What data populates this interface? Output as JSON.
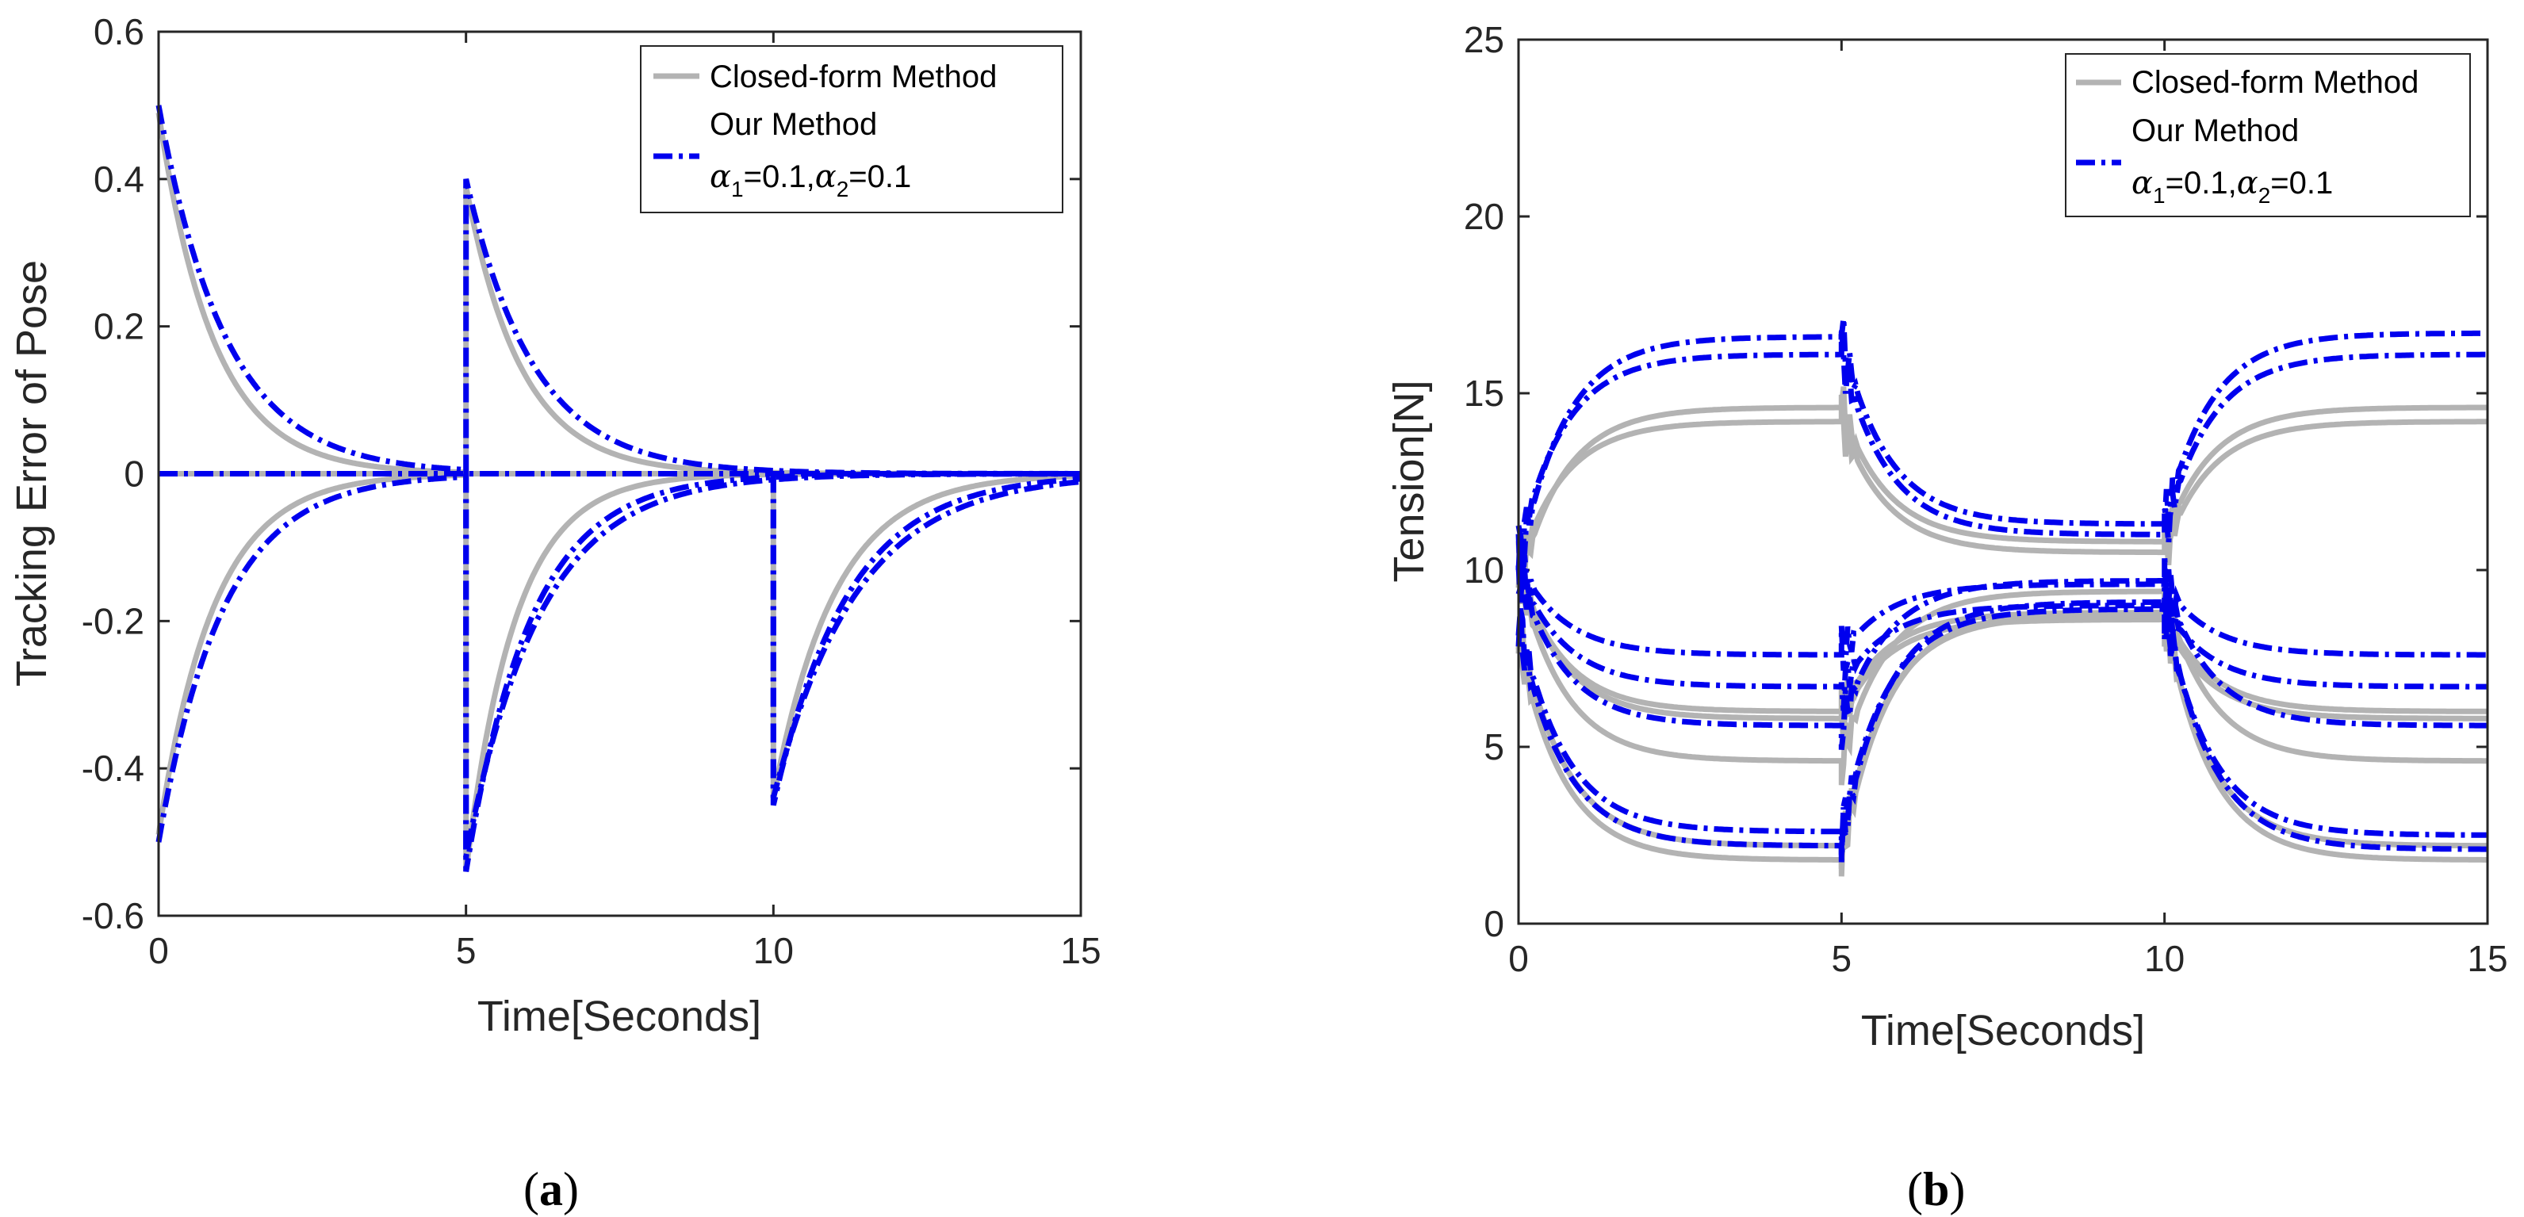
{
  "colors": {
    "closed": "#b3b3b3",
    "ours": "#0000ee",
    "axis": "#262626"
  },
  "chart_data": [
    {
      "type": "line",
      "id": "a",
      "caption_letter": "a",
      "xlabel": "Time[Seconds]",
      "ylabel": "Tracking Error of Pose",
      "xlim": [
        0,
        15
      ],
      "ylim": [
        -0.6,
        0.6
      ],
      "xticks": [
        0,
        5,
        10,
        15
      ],
      "yticks": [
        -0.6,
        -0.4,
        -0.2,
        0,
        0.2,
        0.4,
        0.6
      ],
      "ytick_labels": [
        "-0.6",
        "-0.4",
        "-0.2",
        "0",
        "0.2",
        "0.4",
        "0.6"
      ],
      "legend": {
        "position": "top-right",
        "entries": [
          {
            "text": "Closed-form Method",
            "style": "solid-gray"
          },
          {
            "text": "Our Method",
            "style": "dashdot-blue"
          },
          {
            "alpha1_value": "0.1",
            "alpha2_value": "0.1"
          }
        ]
      },
      "series": [
        {
          "name": "Closed-form Method",
          "segments": [
            {
              "t0": 0,
              "t1": 5,
              "start": 0.49,
              "end": 0.0,
              "tau": 0.9
            },
            {
              "t0": 0,
              "t1": 5,
              "start": -0.49,
              "end": 0.0,
              "tau": 0.9
            },
            {
              "t0": 5,
              "t1": 15,
              "start": 0.39,
              "end": 0.0,
              "tau": 0.9
            },
            {
              "t0": 5,
              "t1": 15,
              "start": -0.54,
              "end": 0.0,
              "tau": 0.8
            },
            {
              "t0": 10,
              "t1": 15,
              "start": -0.44,
              "end": 0.0,
              "tau": 1.0
            },
            {
              "t0": 0,
              "t1": 15,
              "start": 0.0,
              "end": 0.0,
              "tau": 1.0
            }
          ]
        },
        {
          "name": "Our Method α1=0.1,α2=0.1",
          "segments": [
            {
              "t0": 0,
              "t1": 5,
              "start": 0.5,
              "end": 0.0,
              "tau": 1.1
            },
            {
              "t0": 0,
              "t1": 5,
              "start": -0.5,
              "end": 0.0,
              "tau": 1.05
            },
            {
              "t0": 5,
              "t1": 15,
              "start": 0.4,
              "end": 0.0,
              "tau": 1.1
            },
            {
              "t0": 5,
              "t1": 15,
              "start": -0.54,
              "end": 0.0,
              "tau": 1.05
            },
            {
              "t0": 5,
              "t1": 15,
              "start": -0.52,
              "end": 0.0,
              "tau": 1.2
            },
            {
              "t0": 10,
              "t1": 15,
              "start": -0.45,
              "end": 0.0,
              "tau": 1.2
            },
            {
              "t0": 10,
              "t1": 15,
              "start": -0.44,
              "end": 0.0,
              "tau": 1.35
            },
            {
              "t0": 0,
              "t1": 15,
              "start": 0.0,
              "end": 0.0,
              "tau": 1.0
            }
          ]
        }
      ]
    },
    {
      "type": "line",
      "id": "b",
      "caption_letter": "b",
      "xlabel": "Time[Seconds]",
      "ylabel": "Tension[N]",
      "xlim": [
        0,
        15
      ],
      "ylim": [
        0,
        25
      ],
      "xticks": [
        0,
        5,
        10,
        15
      ],
      "yticks": [
        0,
        5,
        10,
        15,
        20,
        25
      ],
      "ytick_labels": [
        "0",
        "5",
        "10",
        "15",
        "20",
        "25"
      ],
      "legend": {
        "position": "top-right",
        "entries": [
          {
            "text": "Closed-form Method",
            "style": "solid-gray"
          },
          {
            "text": "Our Method",
            "style": "dashdot-blue"
          },
          {
            "alpha1_value": "0.1",
            "alpha2_value": "0.1"
          }
        ]
      },
      "series": [
        {
          "name": "Closed-form Method",
          "cables": [
            [
              9.5,
              14.6,
              10.8,
              14.6
            ],
            [
              10.0,
              14.2,
              10.5,
              14.2
            ],
            [
              10.0,
              6.0,
              8.8,
              6.0
            ],
            [
              10.0,
              5.8,
              8.6,
              5.8
            ],
            [
              10.0,
              4.6,
              9.4,
              4.6
            ],
            [
              8.5,
              2.2,
              8.7,
              2.2
            ],
            [
              8.0,
              1.8,
              8.8,
              1.8
            ]
          ]
        },
        {
          "name": "Our Method α1=0.1,α2=0.1",
          "cables": [
            [
              10.0,
              16.6,
              11.3,
              16.7
            ],
            [
              10.5,
              16.1,
              11.0,
              16.1
            ],
            [
              10.2,
              7.6,
              9.6,
              7.6
            ],
            [
              10.0,
              6.7,
              9.0,
              6.7
            ],
            [
              10.0,
              5.6,
              9.7,
              5.6
            ],
            [
              8.7,
              2.6,
              8.9,
              2.5
            ],
            [
              8.4,
              2.2,
              9.1,
              2.1
            ]
          ]
        }
      ]
    }
  ]
}
